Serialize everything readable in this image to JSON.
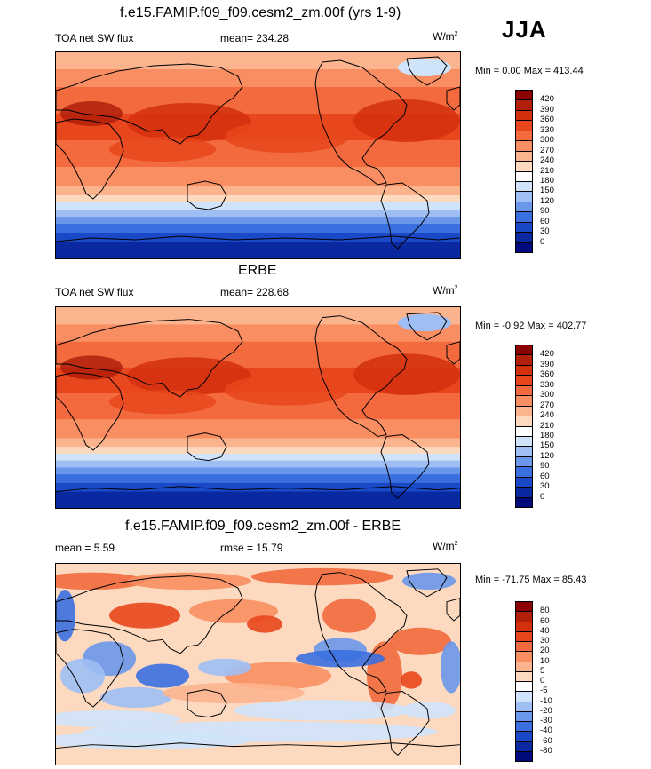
{
  "season": "JJA",
  "panels": [
    {
      "title": "f.e15.FAMIP.f09_f09.cesm2_zm.00f (yrs 1-9)",
      "left_label": "TOA net SW flux",
      "center_label": "mean= 234.28",
      "units_base": "W/m",
      "units_sup": "2",
      "minmax": "Min =   0.00 Max = 413.44",
      "colorbar": {
        "labels": [
          "420",
          "390",
          "360",
          "330",
          "300",
          "270",
          "240",
          "210",
          "180",
          "150",
          "120",
          "90",
          "60",
          "30",
          "0"
        ],
        "colors": [
          "#8b0000",
          "#b21f0a",
          "#d3300e",
          "#e8461c",
          "#f26a3d",
          "#f88e61",
          "#fcb48f",
          "#fdd9c0",
          "#ffffff",
          "#cfe3fb",
          "#9fbff4",
          "#6a97ea",
          "#3a6fdf",
          "#1a49c7",
          "#0a28a0",
          "#000a7a"
        ]
      },
      "map_style": "model"
    },
    {
      "title": "ERBE",
      "left_label": "TOA net SW flux",
      "center_label": "mean= 228.68",
      "units_base": "W/m",
      "units_sup": "2",
      "minmax": "Min =  -0.92 Max = 402.77",
      "colorbar": {
        "labels": [
          "420",
          "390",
          "360",
          "330",
          "300",
          "270",
          "240",
          "210",
          "180",
          "150",
          "120",
          "90",
          "60",
          "30",
          "0"
        ],
        "colors": [
          "#8b0000",
          "#b21f0a",
          "#d3300e",
          "#e8461c",
          "#f26a3d",
          "#f88e61",
          "#fcb48f",
          "#fdd9c0",
          "#ffffff",
          "#cfe3fb",
          "#9fbff4",
          "#6a97ea",
          "#3a6fdf",
          "#1a49c7",
          "#0a28a0",
          "#000a7a"
        ]
      },
      "map_style": "obs"
    },
    {
      "title": "f.e15.FAMIP.f09_f09.cesm2_zm.00f - ERBE",
      "left_label": "mean =   5.59",
      "center_label": "rmse =  15.79",
      "units_base": "W/m",
      "units_sup": "2",
      "minmax": "Min = -71.75 Max =  85.43",
      "colorbar": {
        "labels": [
          "80",
          "60",
          "40",
          "30",
          "20",
          "10",
          "5",
          "0",
          "-5",
          "-10",
          "-20",
          "-30",
          "-40",
          "-60",
          "-80"
        ],
        "colors": [
          "#8b0000",
          "#b21f0a",
          "#d3300e",
          "#e8461c",
          "#f26a3d",
          "#f88e61",
          "#fcb48f",
          "#fdd9c0",
          "#ffffff",
          "#cfe3fb",
          "#9fbff4",
          "#6a97ea",
          "#3a6fdf",
          "#1a49c7",
          "#0a28a0",
          "#000a7a"
        ]
      },
      "map_style": "diff"
    }
  ]
}
